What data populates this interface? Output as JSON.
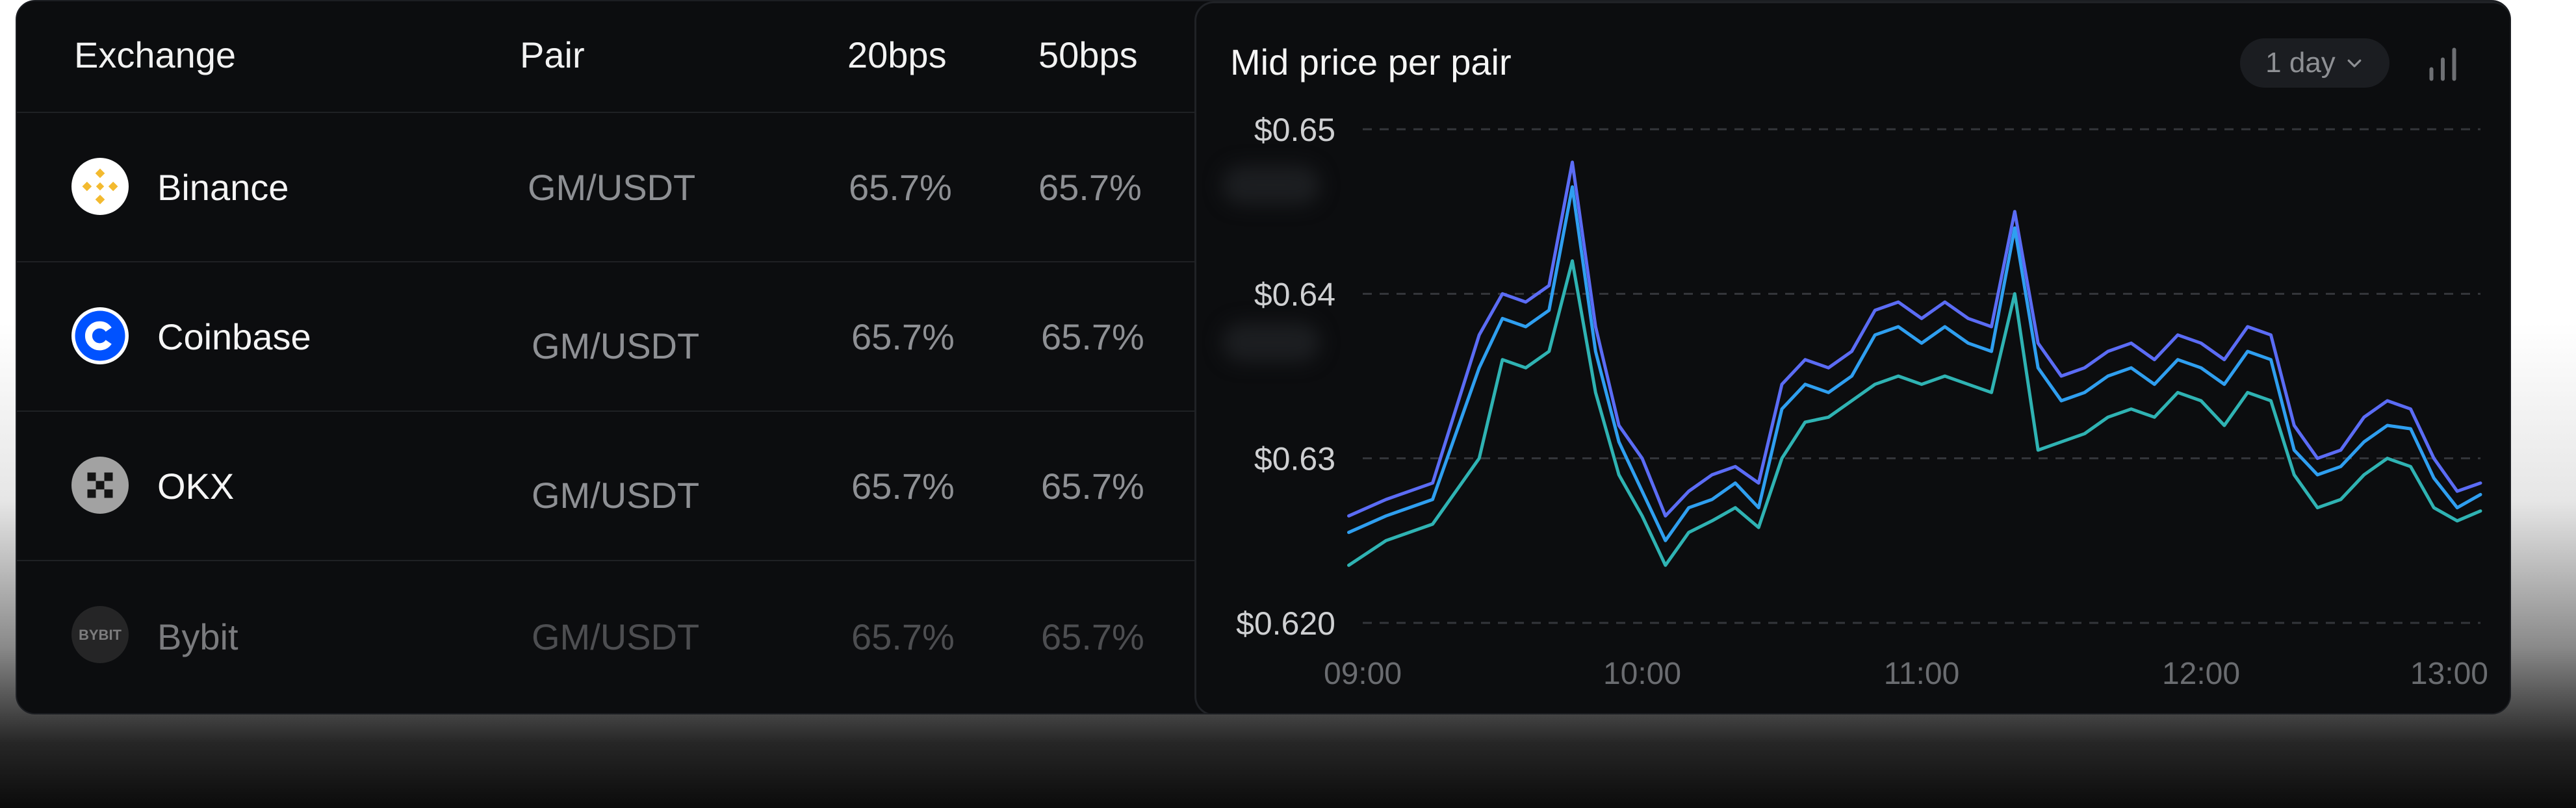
{
  "table": {
    "headers": {
      "exchange": "Exchange",
      "pair": "Pair",
      "bps20": "20bps",
      "bps50": "50bps"
    },
    "rows": [
      {
        "exchange": "Binance",
        "pair": "GM/USDT",
        "bps20": "65.7%",
        "bps50": "65.7%",
        "icon": "binance-logo-icon",
        "color": "#F3BA2F"
      },
      {
        "exchange": "Coinbase",
        "pair": "GM/USDT",
        "bps20": "65.7%",
        "bps50": "65.7%",
        "icon": "coinbase-logo-icon",
        "color": "#0052FF"
      },
      {
        "exchange": "OKX",
        "pair": "GM/USDT",
        "bps20": "65.7%",
        "bps50": "65.7%",
        "icon": "okx-logo-icon",
        "color": "#9A9A9A"
      },
      {
        "exchange": "Bybit",
        "pair": "GM/USDT",
        "bps20": "65.7%",
        "bps50": "65.7%",
        "icon": "bybit-logo-icon",
        "color": "#3A3A3A"
      }
    ]
  },
  "chart_header": {
    "title": "Mid price per pair",
    "range_label": "1 day",
    "range_icon": "chevron-down-icon",
    "chart_type_icon": "bar-chart-icon"
  },
  "chart_data": {
    "type": "line",
    "xlabel": "",
    "ylabel": "",
    "x_ticks": [
      "09:00",
      "10:00",
      "11:00",
      "12:00",
      "13:00"
    ],
    "y_ticks": [
      "$0.65",
      "$0.64",
      "$0.63",
      "$0.620"
    ],
    "xlim": [
      "09:00",
      "13:00"
    ],
    "ylim": [
      0.62,
      0.65
    ],
    "grid": true,
    "colors": [
      "#5b6cf5",
      "#2f9ff0",
      "#2fb3b3"
    ],
    "series": [
      {
        "values_x": [
          "08:57",
          "09:05",
          "09:15",
          "09:25",
          "09:30",
          "09:35",
          "09:40",
          "09:45",
          "09:50",
          "09:55",
          "10:00",
          "10:05",
          "10:10",
          "10:15",
          "10:20",
          "10:25",
          "10:30",
          "10:35",
          "10:40",
          "10:45",
          "10:50",
          "10:55",
          "11:00",
          "11:05",
          "11:10",
          "11:15",
          "11:20",
          "11:25",
          "11:30",
          "11:35",
          "11:40",
          "11:45",
          "11:50",
          "11:55",
          "12:00",
          "12:05",
          "12:10",
          "12:15",
          "12:20",
          "12:25",
          "12:30",
          "12:35",
          "12:40",
          "12:45",
          "12:50",
          "12:55",
          "13:00"
        ],
        "values": [
          0.6265,
          0.6275,
          0.6285,
          0.6375,
          0.64,
          0.6395,
          0.6405,
          0.648,
          0.638,
          0.632,
          0.63,
          0.6265,
          0.628,
          0.629,
          0.6295,
          0.6285,
          0.6345,
          0.636,
          0.6355,
          0.6365,
          0.639,
          0.6395,
          0.6385,
          0.6395,
          0.6385,
          0.638,
          0.645,
          0.637,
          0.635,
          0.6355,
          0.6365,
          0.637,
          0.636,
          0.6375,
          0.637,
          0.636,
          0.638,
          0.6375,
          0.632,
          0.63,
          0.6305,
          0.6325,
          0.6335,
          0.633,
          0.63,
          0.628,
          0.6285
        ]
      },
      {
        "values_x": [
          "08:57",
          "09:05",
          "09:15",
          "09:25",
          "09:30",
          "09:35",
          "09:40",
          "09:45",
          "09:50",
          "09:55",
          "10:00",
          "10:05",
          "10:10",
          "10:15",
          "10:20",
          "10:25",
          "10:30",
          "10:35",
          "10:40",
          "10:45",
          "10:50",
          "10:55",
          "11:00",
          "11:05",
          "11:10",
          "11:15",
          "11:20",
          "11:25",
          "11:30",
          "11:35",
          "11:40",
          "11:45",
          "11:50",
          "11:55",
          "12:00",
          "12:05",
          "12:10",
          "12:15",
          "12:20",
          "12:25",
          "12:30",
          "12:35",
          "12:40",
          "12:45",
          "12:50",
          "12:55",
          "13:00"
        ],
        "values": [
          0.6255,
          0.6265,
          0.6275,
          0.6355,
          0.6385,
          0.638,
          0.639,
          0.6465,
          0.6365,
          0.631,
          0.628,
          0.625,
          0.627,
          0.6275,
          0.6285,
          0.627,
          0.633,
          0.6345,
          0.634,
          0.635,
          0.6375,
          0.638,
          0.637,
          0.638,
          0.637,
          0.6365,
          0.644,
          0.6355,
          0.6335,
          0.634,
          0.635,
          0.6355,
          0.6345,
          0.636,
          0.6355,
          0.6345,
          0.6365,
          0.636,
          0.6305,
          0.629,
          0.6295,
          0.631,
          0.632,
          0.6318,
          0.6288,
          0.627,
          0.6278
        ]
      },
      {
        "values_x": [
          "08:57",
          "09:05",
          "09:15",
          "09:25",
          "09:30",
          "09:35",
          "09:40",
          "09:45",
          "09:50",
          "09:55",
          "10:00",
          "10:05",
          "10:10",
          "10:15",
          "10:20",
          "10:25",
          "10:30",
          "10:35",
          "10:40",
          "10:45",
          "10:50",
          "10:55",
          "11:00",
          "11:05",
          "11:10",
          "11:15",
          "11:20",
          "11:25",
          "11:30",
          "11:35",
          "11:40",
          "11:45",
          "11:50",
          "11:55",
          "12:00",
          "12:05",
          "12:10",
          "12:15",
          "12:20",
          "12:25",
          "12:30",
          "12:35",
          "12:40",
          "12:45",
          "12:50",
          "12:55",
          "13:00"
        ],
        "values": [
          0.6235,
          0.625,
          0.626,
          0.63,
          0.636,
          0.6355,
          0.6365,
          0.642,
          0.634,
          0.629,
          0.6265,
          0.6235,
          0.6255,
          0.6262,
          0.627,
          0.6258,
          0.63,
          0.6322,
          0.6325,
          0.6335,
          0.6345,
          0.635,
          0.6345,
          0.635,
          0.6345,
          0.634,
          0.64,
          0.6305,
          0.631,
          0.6315,
          0.6325,
          0.633,
          0.6325,
          0.634,
          0.6335,
          0.632,
          0.634,
          0.6335,
          0.629,
          0.627,
          0.6275,
          0.629,
          0.63,
          0.6295,
          0.627,
          0.6262,
          0.6268
        ]
      }
    ]
  }
}
